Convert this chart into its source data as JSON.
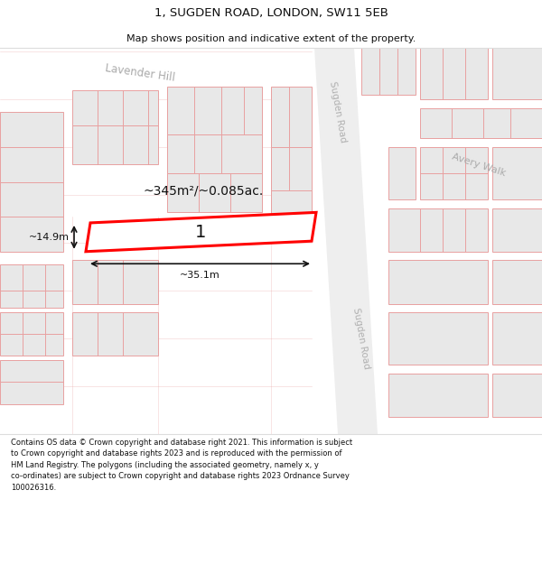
{
  "title": "1, SUGDEN ROAD, LONDON, SW11 5EB",
  "subtitle": "Map shows position and indicative extent of the property.",
  "footer": "Contains OS data © Crown copyright and database right 2021. This information is subject\nto Crown copyright and database rights 2023 and is reproduced with the permission of\nHM Land Registry. The polygons (including the associated geometry, namely x, y\nco-ordinates) are subject to Crown copyright and database rights 2023 Ordnance Survey\n100026316.",
  "bg_color": "#ffffff",
  "map_bg": "#f7f7f7",
  "building_fill": "#e8e8e8",
  "building_edge": "#e8a0a0",
  "highlight_fill": "#ffffff",
  "highlight_edge": "#ff0000",
  "road_color": "#f0f0f0",
  "area_text": "~345m²/~0.085ac.",
  "label_1": "1",
  "dim_width": "~35.1m",
  "dim_height": "~14.9m",
  "road_name_sugden_top": "Sugden Road",
  "road_name_sugden_bot": "Sugden Road",
  "road_name_lavender": "Lavender Hill",
  "road_name_avery": "Avery Walk",
  "title_fontsize": 9.5,
  "subtitle_fontsize": 8,
  "footer_fontsize": 6
}
